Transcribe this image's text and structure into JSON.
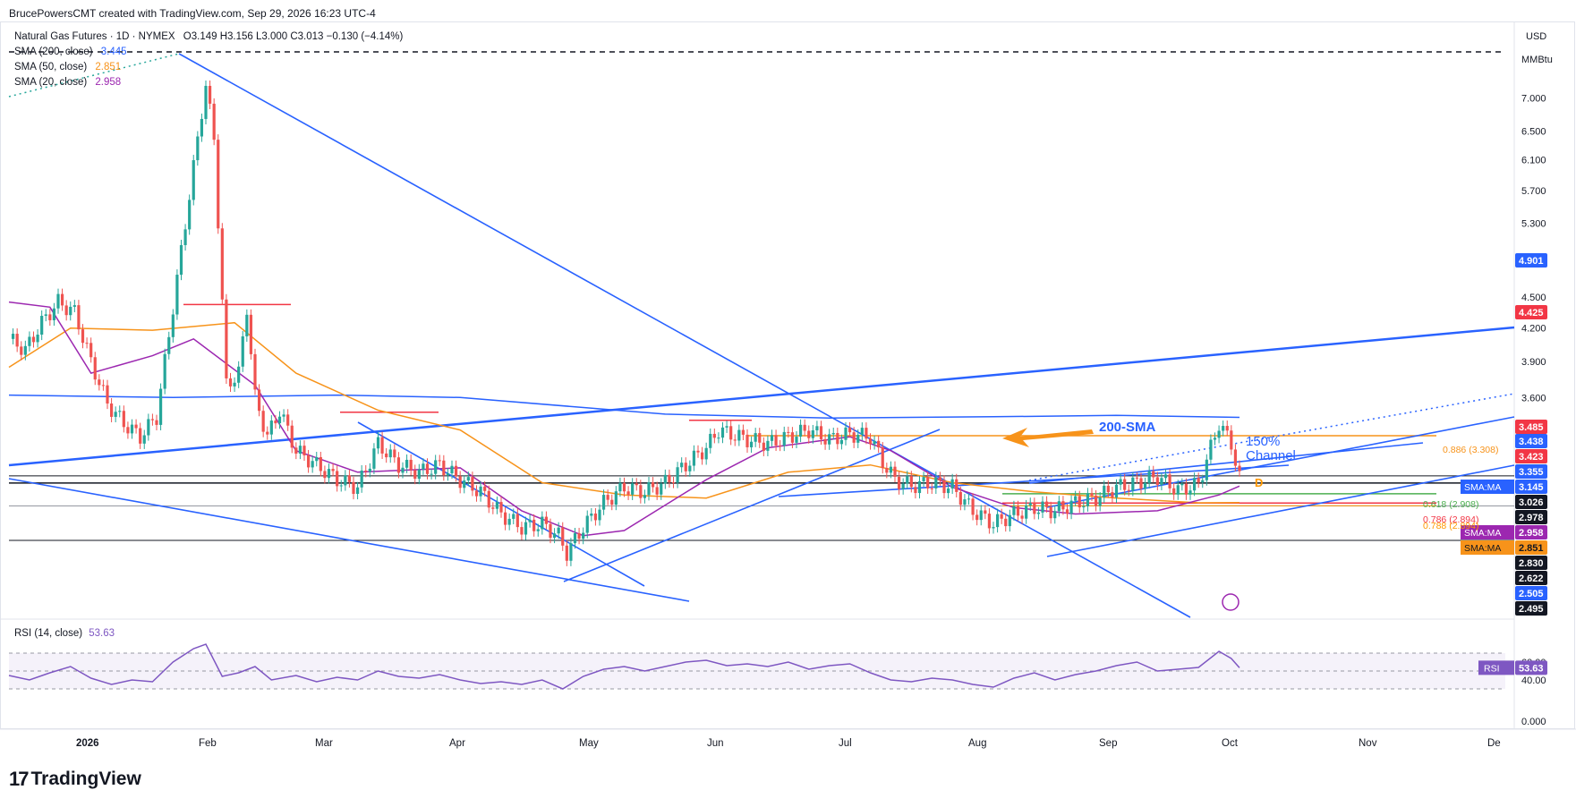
{
  "header": {
    "created_by": "BrucePowersCMT created with TradingView.com, Sep 29, 2026 16:23 UTC-4"
  },
  "symbol": {
    "name": "Natural Gas Futures · 1D · NYMEX",
    "ohlc": "O3.149  H3.156  L3.000  C3.013  −0.130 (−4.14%)"
  },
  "indicators": [
    {
      "label": "SMA (200, close)",
      "value": "3.445",
      "color": "#2962ff"
    },
    {
      "label": "SMA (50, close)",
      "value": "2.851",
      "color": "#f7931a"
    },
    {
      "label": "SMA (20, close)",
      "value": "2.958",
      "color": "#9c27b0"
    }
  ],
  "rsi_legend": {
    "label": "RSI (14, close)",
    "value": "53.63"
  },
  "axis": {
    "currency": "USD",
    "unit": "MMBtu",
    "ticks": [
      "7.000",
      "6.500",
      "6.100",
      "5.700",
      "5.300",
      "4.500",
      "4.200",
      "3.900",
      "3.600"
    ],
    "rsi_ticks": [
      "60.00",
      "40.00",
      "0.000"
    ],
    "month_labels": [
      "2026",
      "Feb",
      "Mar",
      "Apr",
      "May",
      "Jun",
      "Jul",
      "Aug",
      "Sep",
      "Oct",
      "Nov",
      "De"
    ]
  },
  "price_tags": [
    {
      "text": "4.901",
      "color": "#2962ff",
      "textcolor": "#ffffff"
    },
    {
      "text": "4.425",
      "color": "#f23645",
      "textcolor": "#ffffff"
    },
    {
      "text": "3.485",
      "color": "#f23645",
      "textcolor": "#ffffff"
    },
    {
      "text": "3.438",
      "color": "#2962ff",
      "textcolor": "#ffffff"
    },
    {
      "text": "3.423",
      "color": "#f23645",
      "textcolor": "#ffffff"
    },
    {
      "text": "3.355",
      "color": "#2962ff",
      "textcolor": "#ffffff"
    },
    {
      "text": "3.145",
      "color": "#2962ff",
      "textcolor": "#ffffff",
      "label": "SMA:MA"
    },
    {
      "text": "3.026",
      "color": "#131722",
      "textcolor": "#ffffff"
    },
    {
      "text": "2.978",
      "color": "#131722",
      "textcolor": "#ffffff"
    },
    {
      "text": "2.958",
      "color": "#9c27b0",
      "textcolor": "#ffffff",
      "label": "SMA:MA"
    },
    {
      "text": "2.851",
      "color": "#f7931a",
      "textcolor": "#131722",
      "label": "SMA:MA"
    },
    {
      "text": "2.830",
      "color": "#131722",
      "textcolor": "#ffffff"
    },
    {
      "text": "2.622",
      "color": "#131722",
      "textcolor": "#ffffff"
    },
    {
      "text": "2.505",
      "color": "#2962ff",
      "textcolor": "#ffffff"
    },
    {
      "text": "2.495",
      "color": "#131722",
      "textcolor": "#ffffff"
    },
    {
      "text": "53.63",
      "color": "#7e57c2",
      "textcolor": "#ffffff",
      "label": "RSI"
    }
  ],
  "annotations": {
    "sma200": "200-SMA",
    "channel_pct": "150%",
    "channel": "Channel",
    "fib_886": "0.886 (3.308)",
    "fib_618": "0.618 (2.908)",
    "fib_786": "0.786 (2.894)",
    "fib_788": "0.788 (2.894)",
    "pattern_d": "D"
  },
  "brand": "TradingView",
  "colors": {
    "up": "#26a69a",
    "down": "#ef5350",
    "sma200": "#2962ff",
    "sma50": "#f7931a",
    "sma20": "#9c27b0",
    "rsi": "#7e57c2",
    "trend": "#2962ff"
  },
  "chart_data": {
    "type": "candlestick",
    "title": "Natural Gas Futures · 1D · NYMEX",
    "ylabel": "USD / MMBtu",
    "scale": "log",
    "ylim": [
      2.3,
      7.6
    ],
    "x_months": [
      "2026",
      "Feb",
      "Mar",
      "Apr",
      "May",
      "Jun",
      "Jul",
      "Aug",
      "Sep",
      "Oct",
      "Nov",
      "De"
    ],
    "close_path": [
      [
        0,
        4.1
      ],
      [
        4,
        4.0
      ],
      [
        8,
        4.25
      ],
      [
        12,
        4.45
      ],
      [
        16,
        4.35
      ],
      [
        20,
        3.9
      ],
      [
        24,
        3.55
      ],
      [
        28,
        3.4
      ],
      [
        32,
        3.3
      ],
      [
        36,
        3.45
      ],
      [
        40,
        4.4
      ],
      [
        43,
        5.3
      ],
      [
        45,
        6.0
      ],
      [
        47,
        6.8
      ],
      [
        48,
        7.2
      ],
      [
        50,
        6.4
      ],
      [
        53,
        3.7
      ],
      [
        56,
        3.8
      ],
      [
        58,
        4.4
      ],
      [
        60,
        3.6
      ],
      [
        63,
        3.3
      ],
      [
        66,
        3.5
      ],
      [
        70,
        3.2
      ],
      [
        75,
        3.1
      ],
      [
        80,
        3.0
      ],
      [
        85,
        2.95
      ],
      [
        90,
        3.25
      ],
      [
        95,
        3.1
      ],
      [
        100,
        3.05
      ],
      [
        105,
        3.1
      ],
      [
        110,
        3.0
      ],
      [
        115,
        2.92
      ],
      [
        120,
        2.78
      ],
      [
        125,
        2.7
      ],
      [
        130,
        2.72
      ],
      [
        134,
        2.65
      ],
      [
        136,
        2.55
      ],
      [
        140,
        2.7
      ],
      [
        145,
        2.85
      ],
      [
        150,
        2.95
      ],
      [
        155,
        2.92
      ],
      [
        160,
        2.98
      ],
      [
        165,
        3.1
      ],
      [
        170,
        3.22
      ],
      [
        173,
        3.35
      ],
      [
        176,
        3.32
      ],
      [
        180,
        3.28
      ],
      [
        185,
        3.25
      ],
      [
        190,
        3.3
      ],
      [
        195,
        3.35
      ],
      [
        200,
        3.28
      ],
      [
        205,
        3.32
      ],
      [
        210,
        3.3
      ],
      [
        213,
        3.12
      ],
      [
        216,
        3.0
      ],
      [
        220,
        2.96
      ],
      [
        225,
        2.98
      ],
      [
        230,
        2.95
      ],
      [
        235,
        2.8
      ],
      [
        240,
        2.72
      ],
      [
        245,
        2.78
      ],
      [
        250,
        2.82
      ],
      [
        255,
        2.8
      ],
      [
        260,
        2.85
      ],
      [
        265,
        2.88
      ],
      [
        270,
        2.95
      ],
      [
        275,
        2.98
      ],
      [
        280,
        3.02
      ],
      [
        285,
        2.93
      ],
      [
        290,
        2.97
      ],
      [
        295,
        3.4
      ],
      [
        298,
        3.25
      ],
      [
        300,
        3.01
      ]
    ],
    "series": [
      {
        "name": "SMA (200, close)",
        "last": 3.445
      },
      {
        "name": "SMA (50, close)",
        "last": 2.851
      },
      {
        "name": "SMA (20, close)",
        "last": 2.958
      }
    ],
    "levels": [
      3.308,
      2.908,
      2.894,
      3.026,
      2.978,
      2.83,
      2.622,
      2.505,
      2.495
    ],
    "rsi": {
      "name": "RSI (14, close)",
      "last": 53.63,
      "bands": [
        70,
        50,
        30
      ],
      "path": [
        [
          0,
          45
        ],
        [
          5,
          40
        ],
        [
          10,
          48
        ],
        [
          15,
          55
        ],
        [
          20,
          42
        ],
        [
          25,
          35
        ],
        [
          30,
          40
        ],
        [
          35,
          38
        ],
        [
          40,
          60
        ],
        [
          45,
          75
        ],
        [
          48,
          80
        ],
        [
          52,
          44
        ],
        [
          56,
          48
        ],
        [
          60,
          55
        ],
        [
          64,
          40
        ],
        [
          70,
          45
        ],
        [
          75,
          38
        ],
        [
          80,
          43
        ],
        [
          85,
          40
        ],
        [
          90,
          50
        ],
        [
          95,
          44
        ],
        [
          100,
          42
        ],
        [
          105,
          46
        ],
        [
          110,
          40
        ],
        [
          115,
          36
        ],
        [
          120,
          38
        ],
        [
          125,
          35
        ],
        [
          130,
          40
        ],
        [
          135,
          30
        ],
        [
          140,
          44
        ],
        [
          145,
          52
        ],
        [
          150,
          55
        ],
        [
          155,
          50
        ],
        [
          160,
          55
        ],
        [
          165,
          60
        ],
        [
          170,
          62
        ],
        [
          175,
          56
        ],
        [
          180,
          58
        ],
        [
          185,
          55
        ],
        [
          190,
          60
        ],
        [
          195,
          52
        ],
        [
          200,
          56
        ],
        [
          205,
          58
        ],
        [
          210,
          48
        ],
        [
          215,
          40
        ],
        [
          220,
          38
        ],
        [
          225,
          42
        ],
        [
          230,
          40
        ],
        [
          235,
          35
        ],
        [
          240,
          32
        ],
        [
          245,
          42
        ],
        [
          250,
          48
        ],
        [
          255,
          40
        ],
        [
          260,
          46
        ],
        [
          265,
          50
        ],
        [
          270,
          56
        ],
        [
          275,
          60
        ],
        [
          280,
          50
        ],
        [
          285,
          52
        ],
        [
          290,
          54
        ],
        [
          295,
          72
        ],
        [
          298,
          64
        ],
        [
          300,
          53.63
        ]
      ]
    }
  }
}
